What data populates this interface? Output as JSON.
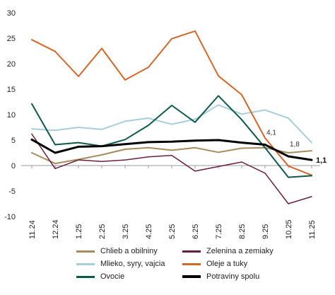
{
  "chart_data": {
    "type": "line",
    "title": "",
    "xlabel": "",
    "ylabel": "",
    "ylim": [
      -10,
      30
    ],
    "yticks": [
      "-10",
      "-5",
      "0",
      "5",
      "10",
      "15",
      "20",
      "25",
      "30"
    ],
    "categories": [
      "11.24",
      "12.24",
      "1.25",
      "2.25",
      "3.25",
      "4.25",
      "5.25",
      "6.25",
      "7.25",
      "8.25",
      "9.25",
      "10.25",
      "11.25"
    ],
    "series": [
      {
        "name": "Chlieb a obilniny",
        "color": "#A68B5B",
        "width": 2,
        "values": [
          2.5,
          0.4,
          1.2,
          2.1,
          3.2,
          3.5,
          3.0,
          3.5,
          2.6,
          3.4,
          3.5,
          2.5,
          2.9
        ]
      },
      {
        "name": "Zelenina a zemiaky",
        "color": "#6B1F3F",
        "width": 1.5,
        "values": [
          6.2,
          -0.6,
          1.1,
          0.8,
          1.1,
          1.7,
          2.0,
          -1.1,
          -0.2,
          0.7,
          -1.5,
          -7.5,
          -6.1
        ]
      },
      {
        "name": "Mlieko, syry, vajcia",
        "color": "#A8CEDD",
        "width": 2,
        "values": [
          7.2,
          6.9,
          7.5,
          7.1,
          8.7,
          9.3,
          8.1,
          9.1,
          11.9,
          10.1,
          10.9,
          9.3,
          4.5
        ]
      },
      {
        "name": "Oleje a tuky",
        "color": "#D4682A",
        "width": 2,
        "values": [
          24.7,
          22.4,
          17.5,
          23.0,
          16.8,
          19.3,
          24.9,
          26.4,
          17.6,
          13.9,
          5.4,
          -0.1,
          -1.9
        ]
      },
      {
        "name": "Ovocie",
        "color": "#0E5A4A",
        "width": 2,
        "values": [
          12.1,
          4.1,
          4.5,
          3.8,
          5.1,
          7.9,
          11.8,
          8.5,
          13.7,
          9.0,
          3.5,
          -2.3,
          -2.0
        ]
      },
      {
        "name": "Potraviny spolu",
        "color": "#000000",
        "width": 3,
        "values": [
          5.1,
          2.5,
          3.7,
          3.8,
          4.2,
          4.6,
          4.7,
          4.9,
          5.0,
          4.5,
          4.1,
          1.8,
          1.1
        ]
      }
    ],
    "annotations": [
      {
        "text": "4,1",
        "x": "9.25",
        "y": 4.1,
        "bold": false
      },
      {
        "text": "1,8",
        "x": "10.25",
        "y": 1.8,
        "bold": false
      },
      {
        "text": "1,1",
        "x": "11.25",
        "y": 1.1,
        "bold": true
      }
    ],
    "legend_position": "bottom",
    "grid": false
  }
}
